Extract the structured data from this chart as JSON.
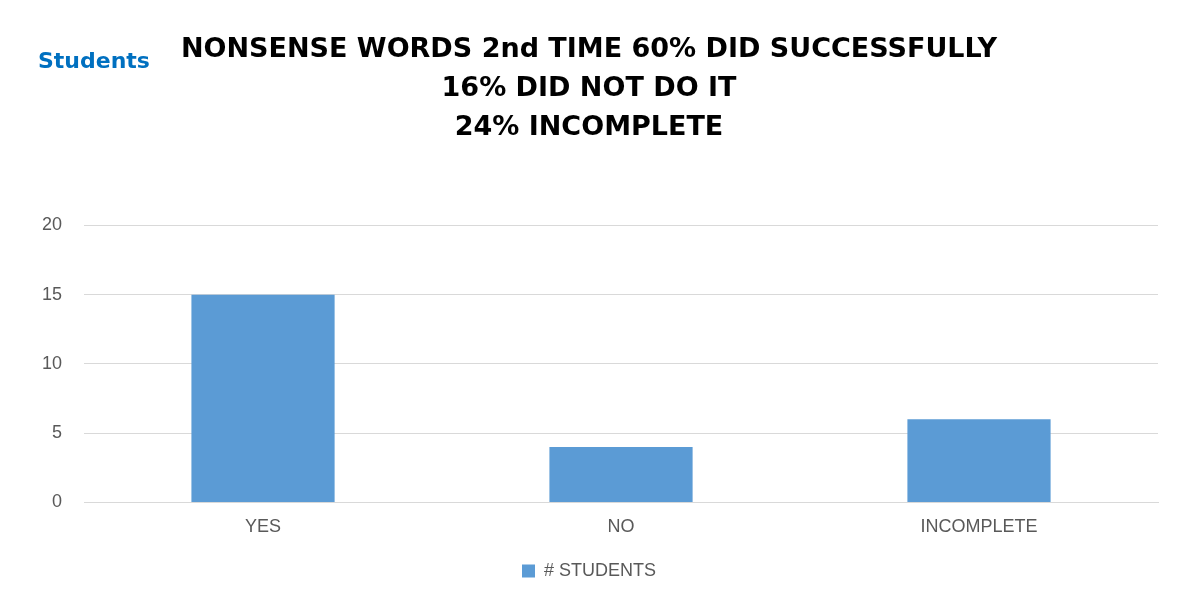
{
  "chart_data": {
    "type": "bar",
    "title": "NONSENSE WORDS 2nd TIME 60% DID SUCCESSFULLY\n16% DID NOT DO IT\n24% INCOMPLETE",
    "annotations": [
      "Students"
    ],
    "categories": [
      "YES",
      "NO",
      "INCOMPLETE"
    ],
    "series": [
      {
        "name": "# STUDENTS",
        "color": "#5b9bd5",
        "values": [
          15,
          4,
          6
        ]
      }
    ],
    "ylim": [
      0,
      20
    ],
    "yticks": [
      0,
      5,
      10,
      15,
      20
    ],
    "grid": "y",
    "legend": "bottom"
  }
}
